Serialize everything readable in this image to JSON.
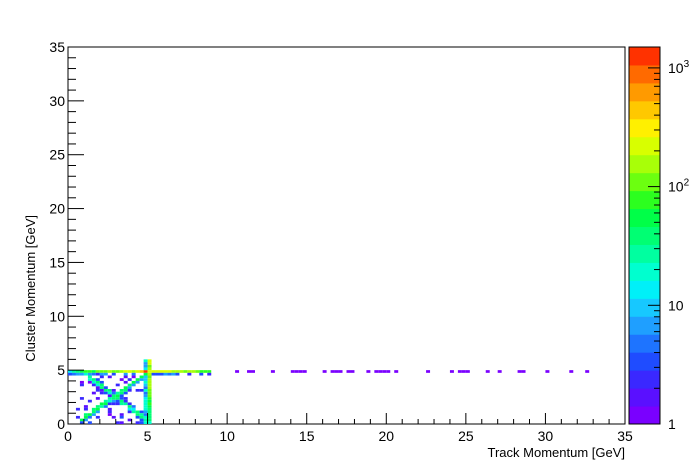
{
  "chart_data": {
    "type": "heatmap",
    "xlabel": "Track Momentum [GeV]",
    "ylabel": "Cluster Momentum [GeV]",
    "xlim": [
      0,
      35
    ],
    "ylim": [
      0,
      35
    ],
    "x_ticks": [
      "0",
      "5",
      "10",
      "15",
      "20",
      "25",
      "30",
      "35"
    ],
    "y_ticks": [
      "0",
      "5",
      "10",
      "15",
      "20",
      "25",
      "30",
      "35"
    ],
    "colorbar": {
      "scale": "log",
      "range": [
        1,
        1500
      ],
      "tick_labels": [
        {
          "value": 1,
          "label": "1"
        },
        {
          "value": 10,
          "label": "10"
        },
        {
          "value": 100,
          "label": "10",
          "sup": "2"
        },
        {
          "value": 1000,
          "label": "10",
          "sup": "3"
        }
      ],
      "palette": [
        "#7a00ff",
        "#5a10ff",
        "#3a28ff",
        "#1f4cff",
        "#1e74ff",
        "#1f9fff",
        "#17c8ff",
        "#00f0f8",
        "#00ffcf",
        "#00ffa0",
        "#00ff73",
        "#00ff48",
        "#2cff1f",
        "#6cff10",
        "#a8ff08",
        "#d8ff00",
        "#fff000",
        "#ffc800",
        "#ff9a00",
        "#ff6a00",
        "#ff3200"
      ]
    },
    "features": [
      {
        "name": "horizontal band",
        "y": 4.9,
        "x_range": [
          0,
          9
        ],
        "count_range": [
          20,
          300
        ]
      },
      {
        "name": "vertical band",
        "x": 5.0,
        "y_range": [
          0,
          6
        ],
        "count_range": [
          20,
          200
        ]
      },
      {
        "name": "peak",
        "x": 4.9,
        "y": 4.9,
        "count": 1500
      },
      {
        "name": "diagonal band",
        "from": [
          0.8,
          0.3
        ],
        "to": [
          5.0,
          4.8
        ],
        "count_range": [
          5,
          60
        ]
      },
      {
        "name": "anti-diagonal band",
        "from": [
          1.2,
          4.5
        ],
        "to": [
          5.0,
          0.3
        ],
        "count_range": [
          3,
          40
        ]
      },
      {
        "name": "sparse tail",
        "y": 4.9,
        "x_range": [
          9,
          33
        ],
        "count": 1
      }
    ]
  }
}
